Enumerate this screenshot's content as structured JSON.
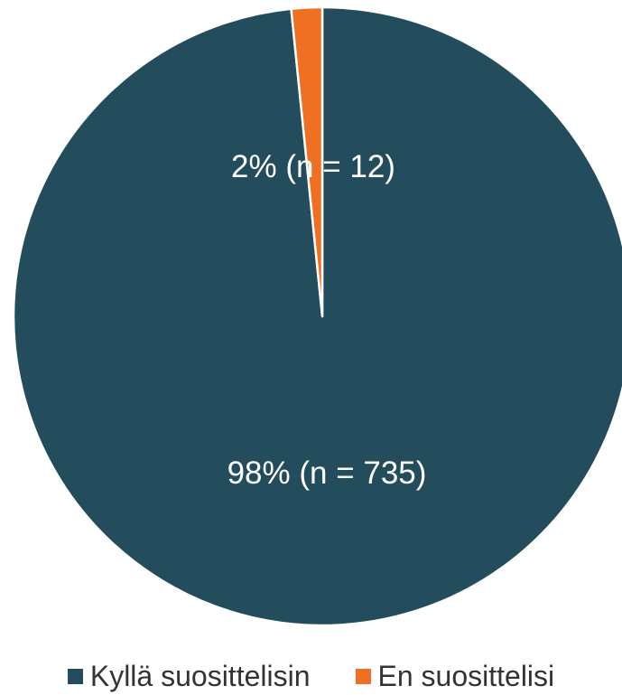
{
  "chart_data": {
    "type": "pie",
    "title": "",
    "slices": [
      {
        "name": "Kyllä suosittelisin",
        "value": 735,
        "percent": 98,
        "label": "98% (n = 735)",
        "color": "#234D5C"
      },
      {
        "name": "En suosittelisi",
        "value": 12,
        "percent": 2,
        "label": "2% (n = 12)",
        "color": "#F07023"
      }
    ],
    "legend_position": "bottom"
  }
}
